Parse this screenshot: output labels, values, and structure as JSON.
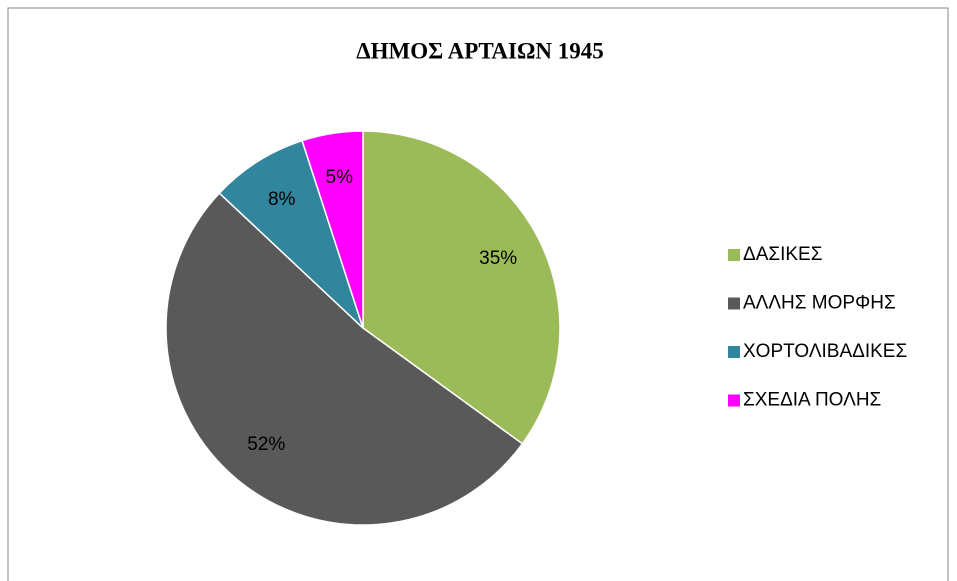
{
  "chart_data": {
    "type": "pie",
    "title": "ΔΗΜΟΣ ΑΡΤΑΙΩΝ 1945",
    "categories": [
      "ΔΑΣΙΚΕΣ",
      "ΑΛΛΗΣ ΜΟΡΦΗΣ",
      "ΧΟΡΤΟΛΙΒΑΔΙΚΕΣ",
      "ΣΧΕΔΙΑ ΠΟΛΗΣ"
    ],
    "values": [
      35,
      52,
      8,
      5
    ],
    "value_labels": [
      "35%",
      "52%",
      "8%",
      "5%"
    ],
    "colors": [
      "#9bbb59",
      "#595959",
      "#31859c",
      "#ff00ff"
    ],
    "legend": "right"
  }
}
